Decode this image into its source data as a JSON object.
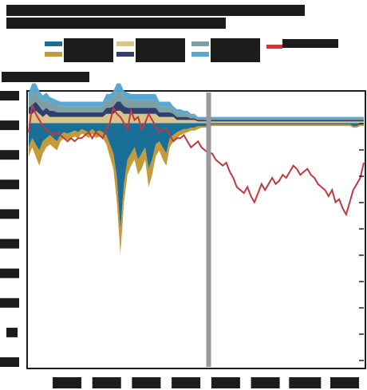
{
  "chart_data": {
    "type": "area",
    "title": "",
    "subtitle": "",
    "xlabel": "",
    "ylabel": "",
    "ylim": [
      -8,
      1
    ],
    "y_ticks": [
      "",
      "",
      "",
      "",
      "",
      "",
      "",
      "",
      "",
      ""
    ],
    "x_ticks": [
      "",
      "",
      "",
      "",
      "",
      "",
      "",
      ""
    ],
    "n_points": 96,
    "divider_index": 51,
    "legend_position": "top",
    "grid": false,
    "colors": {
      "blue": "#1a6f99",
      "gold": "#c49a3a",
      "tan": "#d9c48a",
      "navy": "#2f3f6e",
      "teal_grey": "#7e9fa3",
      "sky": "#57a9d3",
      "line_red": "#c2383f",
      "divider": "#9a9a9a",
      "text_box": "#2a2a2a"
    },
    "series": [
      {
        "name": "",
        "color": "#1a6f99",
        "values": [
          -0.8,
          -0.5,
          -0.7,
          -0.9,
          -0.6,
          -0.5,
          -0.4,
          -0.5,
          -0.6,
          -0.4,
          -0.3,
          -0.35,
          -0.3,
          -0.25,
          -0.3,
          -0.2,
          -0.25,
          -0.3,
          -0.2,
          -0.3,
          -0.25,
          -0.3,
          -0.4,
          -0.7,
          -1.0,
          -1.8,
          -3.5,
          -2.0,
          -1.2,
          -1.0,
          -0.8,
          -1.2,
          -1.0,
          -0.8,
          -1.5,
          -1.2,
          -0.7,
          -0.6,
          -0.8,
          -1.0,
          -0.5,
          -0.4,
          -0.3,
          -0.25,
          -0.2,
          -0.2,
          -0.15,
          -0.15,
          -0.1,
          -0.1,
          -0.1,
          -0.1,
          -0.05,
          -0.05,
          -0.05,
          -0.05,
          -0.05,
          -0.05,
          -0.05,
          -0.05,
          -0.05,
          -0.05,
          -0.05,
          -0.05,
          -0.05,
          -0.05,
          -0.05,
          -0.05,
          -0.05,
          -0.05,
          -0.05,
          -0.05,
          -0.05,
          -0.05,
          -0.05,
          -0.05,
          -0.05,
          -0.05,
          -0.05,
          -0.05,
          -0.05,
          -0.05,
          -0.05,
          -0.05,
          -0.05,
          -0.05,
          -0.05,
          -0.05,
          -0.05,
          -0.05,
          -0.05,
          -0.05,
          -0.1,
          -0.1,
          -0.05,
          -0.05
        ]
      },
      {
        "name": "",
        "color": "#c49a3a",
        "values": [
          -0.3,
          -0.3,
          -0.4,
          -0.5,
          -0.4,
          -0.3,
          -0.3,
          -0.3,
          -0.3,
          -0.2,
          -0.2,
          -0.2,
          -0.2,
          -0.2,
          -0.2,
          -0.15,
          -0.15,
          -0.2,
          -0.15,
          -0.2,
          -0.2,
          -0.2,
          -0.3,
          -0.4,
          -0.5,
          -0.8,
          -0.8,
          -0.6,
          -0.5,
          -0.4,
          -0.4,
          -0.5,
          -0.5,
          -0.4,
          -0.6,
          -0.5,
          -0.4,
          -0.3,
          -0.4,
          -0.4,
          -0.3,
          -0.2,
          -0.2,
          -0.15,
          -0.15,
          -0.1,
          -0.1,
          -0.1,
          -0.1,
          -0.05,
          -0.05,
          -0.05,
          -0.05,
          -0.05,
          -0.05,
          -0.05,
          -0.05,
          -0.05,
          -0.05,
          -0.05,
          -0.05,
          -0.05,
          -0.05,
          -0.05,
          -0.05,
          -0.05,
          -0.05,
          -0.05,
          -0.05,
          -0.05,
          -0.05,
          -0.05,
          -0.05,
          -0.05,
          -0.05,
          -0.05,
          -0.05,
          -0.05,
          -0.05,
          -0.05,
          -0.05,
          -0.05,
          -0.05,
          -0.05,
          -0.05,
          -0.05,
          -0.05,
          -0.05,
          -0.05,
          -0.05,
          -0.05,
          -0.05,
          -0.05,
          -0.05,
          -0.05,
          -0.05
        ]
      },
      {
        "name": "",
        "color": "#d9c48a",
        "values": [
          0.3,
          0.3,
          0.4,
          0.3,
          0.2,
          0.3,
          0.2,
          0.2,
          0.2,
          0.2,
          0.2,
          0.2,
          0.2,
          0.2,
          0.2,
          0.2,
          0.2,
          0.2,
          0.2,
          0.2,
          0.2,
          0.2,
          0.3,
          0.3,
          0.3,
          0.4,
          0.4,
          0.3,
          0.3,
          0.3,
          0.3,
          0.3,
          0.3,
          0.3,
          0.3,
          0.3,
          0.3,
          0.2,
          0.2,
          0.2,
          0.2,
          0.2,
          0.1,
          0.1,
          0.1,
          0.1,
          0.1,
          0.1,
          0.05,
          0.05,
          0.05,
          0.05,
          0.05,
          0.05,
          0.05,
          0.05,
          0.05,
          0.05,
          0.05,
          0.05,
          0.05,
          0.05,
          0.05,
          0.05,
          0.05,
          0.05,
          0.05,
          0.05,
          0.05,
          0.05,
          0.05,
          0.05,
          0.05,
          0.05,
          0.05,
          0.05,
          0.05,
          0.05,
          0.05,
          0.05,
          0.05,
          0.05,
          0.05,
          0.05,
          0.05,
          0.05,
          0.05,
          0.05,
          0.05,
          0.05,
          0.05,
          0.05,
          0.05,
          0.05,
          0.05,
          0.05
        ]
      },
      {
        "name": "",
        "color": "#2f3f6e",
        "values": [
          0.2,
          0.3,
          0.3,
          0.25,
          0.2,
          0.2,
          0.2,
          0.2,
          0.15,
          0.15,
          0.15,
          0.15,
          0.15,
          0.15,
          0.15,
          0.15,
          0.15,
          0.15,
          0.15,
          0.15,
          0.15,
          0.15,
          0.2,
          0.2,
          0.25,
          0.3,
          0.3,
          0.25,
          0.2,
          0.2,
          0.2,
          0.2,
          0.2,
          0.2,
          0.2,
          0.2,
          0.2,
          0.15,
          0.15,
          0.15,
          0.15,
          0.1,
          0.1,
          0.1,
          0.1,
          0.1,
          0.05,
          0.05,
          0.05,
          0.05,
          0.05,
          0.05,
          0.05,
          0.05,
          0.05,
          0.05,
          0.05,
          0.05,
          0.05,
          0.05,
          0.05,
          0.05,
          0.05,
          0.05,
          0.05,
          0.05,
          0.05,
          0.05,
          0.05,
          0.05,
          0.05,
          0.05,
          0.05,
          0.05,
          0.05,
          0.05,
          0.05,
          0.05,
          0.05,
          0.05,
          0.05,
          0.05,
          0.05,
          0.05,
          0.05,
          0.05,
          0.05,
          0.05,
          0.05,
          0.05,
          0.05,
          0.05,
          0.05,
          0.05,
          0.05,
          0.05
        ]
      },
      {
        "name": "",
        "color": "#7e9fa3",
        "values": [
          0.3,
          0.4,
          0.35,
          0.3,
          0.3,
          0.3,
          0.25,
          0.25,
          0.25,
          0.2,
          0.2,
          0.2,
          0.2,
          0.2,
          0.2,
          0.2,
          0.2,
          0.2,
          0.2,
          0.2,
          0.2,
          0.2,
          0.25,
          0.25,
          0.3,
          0.35,
          0.35,
          0.3,
          0.3,
          0.25,
          0.25,
          0.25,
          0.25,
          0.25,
          0.25,
          0.25,
          0.25,
          0.2,
          0.2,
          0.2,
          0.2,
          0.15,
          0.15,
          0.15,
          0.1,
          0.1,
          0.1,
          0.1,
          0.05,
          0.05,
          0.05,
          0.05,
          0.05,
          0.05,
          0.05,
          0.05,
          0.05,
          0.05,
          0.05,
          0.05,
          0.05,
          0.05,
          0.05,
          0.05,
          0.05,
          0.05,
          0.05,
          0.05,
          0.05,
          0.05,
          0.05,
          0.05,
          0.05,
          0.05,
          0.05,
          0.05,
          0.05,
          0.05,
          0.05,
          0.05,
          0.05,
          0.05,
          0.05,
          0.05,
          0.05,
          0.05,
          0.05,
          0.05,
          0.05,
          0.05,
          0.05,
          0.05,
          0.05,
          0.05,
          0.05,
          0.05
        ]
      },
      {
        "name": "",
        "color": "#57a9d3",
        "values": [
          0.2,
          0.3,
          0.25,
          0.2,
          0.2,
          0.2,
          0.2,
          0.15,
          0.15,
          0.15,
          0.15,
          0.15,
          0.15,
          0.15,
          0.15,
          0.15,
          0.15,
          0.15,
          0.15,
          0.15,
          0.15,
          0.15,
          0.2,
          0.2,
          0.2,
          0.25,
          0.25,
          0.2,
          0.2,
          0.2,
          0.2,
          0.2,
          0.2,
          0.2,
          0.2,
          0.2,
          0.2,
          0.15,
          0.15,
          0.15,
          0.15,
          0.1,
          0.1,
          0.1,
          0.1,
          0.1,
          0.05,
          0.05,
          0.05,
          0.05,
          0.05,
          0.05,
          0.05,
          0.05,
          0.05,
          0.05,
          0.05,
          0.05,
          0.05,
          0.05,
          0.05,
          0.05,
          0.05,
          0.05,
          0.05,
          0.05,
          0.05,
          0.05,
          0.05,
          0.05,
          0.05,
          0.05,
          0.05,
          0.05,
          0.05,
          0.05,
          0.05,
          0.05,
          0.05,
          0.05,
          0.05,
          0.05,
          0.05,
          0.05,
          0.05,
          0.05,
          0.05,
          0.05,
          0.05,
          0.05,
          0.05,
          0.05,
          0.05,
          0.05,
          0.05,
          0.05
        ]
      },
      {
        "name": "",
        "color": "#c2383f",
        "type": "line",
        "values": [
          -0.3,
          0.6,
          0.3,
          0.1,
          -0.1,
          -0.2,
          -0.3,
          -0.4,
          -0.3,
          -0.4,
          -0.5,
          -0.6,
          -0.5,
          -0.6,
          -0.5,
          -0.5,
          -0.4,
          -0.3,
          -0.5,
          -0.3,
          -0.4,
          -0.5,
          -0.2,
          0.0,
          0.5,
          0.3,
          0.2,
          0.0,
          -0.2,
          0.4,
          0.1,
          0.2,
          -0.2,
          0.0,
          0.3,
          0.1,
          -0.1,
          -0.3,
          -0.2,
          -0.2,
          -0.4,
          -0.6,
          -0.5,
          -0.5,
          -0.4,
          -0.6,
          -0.8,
          -0.7,
          -0.6,
          -0.8,
          -0.9,
          -1.0,
          -1.0,
          -1.2,
          -1.3,
          -1.4,
          -1.3,
          -1.6,
          -1.8,
          -2.1,
          -2.2,
          -2.3,
          -2.1,
          -2.4,
          -2.6,
          -2.3,
          -2.0,
          -2.2,
          -2.0,
          -1.8,
          -2.0,
          -1.9,
          -1.7,
          -1.8,
          -1.6,
          -1.4,
          -1.5,
          -1.7,
          -1.6,
          -1.5,
          -1.7,
          -1.8,
          -2.0,
          -2.1,
          -2.2,
          -2.4,
          -2.2,
          -2.6,
          -2.5,
          -2.8,
          -3.0,
          -2.6,
          -2.2,
          -2.0,
          -1.8,
          -1.3
        ]
      }
    ]
  },
  "header": {
    "title_line_1": "",
    "title_line_2": ""
  },
  "legend": [
    {
      "label": "",
      "color_a": "#1a6f99",
      "color_b": "#c49a3a"
    },
    {
      "label": "",
      "color_a": "#d9c48a",
      "color_b": "#2f3f6e"
    },
    {
      "label": "",
      "color_a": "#7e9fa3",
      "color_b": "#57a9d3"
    },
    {
      "label": "",
      "color_a": "#c2383f",
      "color_b": ""
    }
  ],
  "axis_unit_label": ""
}
